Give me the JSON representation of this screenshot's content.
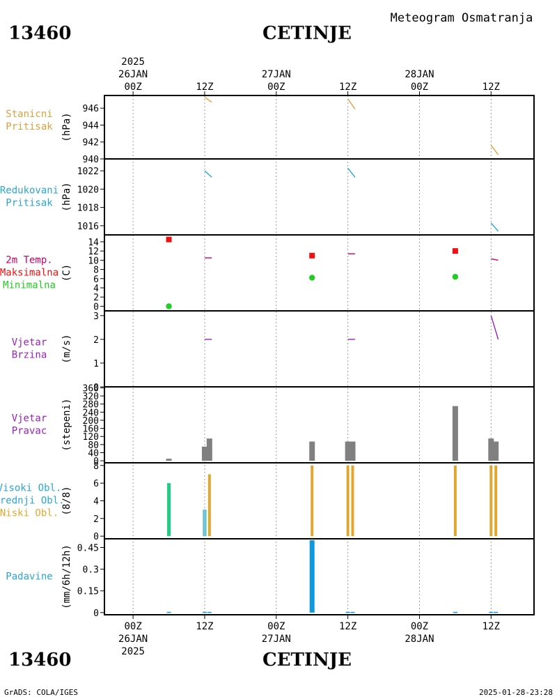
{
  "header": {
    "station_id": "13460",
    "station_name": "CETINJE",
    "subtitle": "Meteogram Osmatranja"
  },
  "footer": {
    "left": "GrADS: COLA/IGES",
    "right": "2025-01-28-23:28"
  },
  "time_axis": {
    "year": "2025",
    "range_hours": [
      -6,
      84
    ],
    "ticks": [
      {
        "h": 0,
        "label": "00Z",
        "date": "26JAN"
      },
      {
        "h": 15,
        "label": "12Z",
        "date": ""
      },
      {
        "h": 30,
        "label": "00Z",
        "date": "27JAN"
      },
      {
        "h": 45,
        "label": "12Z",
        "date": ""
      },
      {
        "h": 60,
        "label": "00Z",
        "date": "28JAN"
      },
      {
        "h": 75,
        "label": "12Z",
        "date": ""
      }
    ]
  },
  "colors": {
    "pressure": "#e0a040",
    "reduced_pressure": "#2aa6d0",
    "tmax": "#ee1111",
    "tmin": "#22cc22",
    "temp_label": "#cc0066",
    "wind": "#9922bb",
    "wind_dir_bar": "#808080",
    "cloud_high": "#22cc88",
    "cloud_mid": "#88bbee",
    "cloud_low": "#e0a830",
    "precip": "#1199dd"
  },
  "chart_data": [
    {
      "type": "line",
      "panel": "station_pressure",
      "labels": [
        "Stanicni",
        "Pritisak"
      ],
      "ylabel": "(hPa)",
      "ylim": [
        940,
        947.5
      ],
      "yticks": [
        940,
        942,
        944,
        946
      ],
      "segments": [
        {
          "x": [
            15,
            16.5
          ],
          "y": [
            947.3,
            946.7
          ]
        },
        {
          "x": [
            45,
            46.5
          ],
          "y": [
            947.1,
            945.9
          ]
        },
        {
          "x": [
            75,
            76.5
          ],
          "y": [
            941.6,
            940.5
          ]
        }
      ]
    },
    {
      "type": "line",
      "panel": "reduced_pressure",
      "labels": [
        "Redukovani",
        "Pritisak"
      ],
      "ylabel": "(hPa)",
      "ylim": [
        1015,
        1023.3
      ],
      "yticks": [
        1016,
        1018,
        1020,
        1022
      ],
      "segments": [
        {
          "x": [
            15,
            16.5
          ],
          "y": [
            1022.0,
            1021.3
          ]
        },
        {
          "x": [
            45,
            46.5
          ],
          "y": [
            1022.3,
            1021.3
          ]
        },
        {
          "x": [
            75,
            76.5
          ],
          "y": [
            1016.3,
            1015.4
          ]
        }
      ]
    },
    {
      "type": "scatter",
      "panel": "temperature",
      "labels": [
        "2m Temp.",
        "Maksimalna",
        "Minimalna"
      ],
      "ylabel": "(C)",
      "ylim": [
        -1,
        15.5
      ],
      "yticks": [
        0,
        2,
        4,
        6,
        8,
        10,
        12,
        14
      ],
      "tmax": [
        {
          "x": 7.5,
          "y": 14.5
        },
        {
          "x": 37.5,
          "y": 11
        },
        {
          "x": 67.5,
          "y": 12
        }
      ],
      "tmin": [
        {
          "x": 7.5,
          "y": 0
        },
        {
          "x": 37.5,
          "y": 6.2
        },
        {
          "x": 67.5,
          "y": 6.4
        }
      ],
      "temp_segments": [
        {
          "x": [
            15,
            16.5
          ],
          "y": [
            10.5,
            10.5
          ]
        },
        {
          "x": [
            45,
            46.5
          ],
          "y": [
            11.4,
            11.4
          ]
        },
        {
          "x": [
            75,
            76.5
          ],
          "y": [
            10.3,
            10.0
          ]
        }
      ]
    },
    {
      "type": "line",
      "panel": "wind_speed",
      "labels": [
        "Vjetar",
        "Brzina"
      ],
      "ylabel": "(m/s)",
      "ylim": [
        0,
        3.2
      ],
      "yticks": [
        0,
        1,
        2,
        3
      ],
      "segments": [
        {
          "x": [
            15,
            16.5
          ],
          "y": [
            2,
            2
          ]
        },
        {
          "x": [
            45,
            46.5
          ],
          "y": [
            2,
            2
          ]
        },
        {
          "x": [
            75,
            76.5
          ],
          "y": [
            3.0,
            2.0
          ]
        }
      ]
    },
    {
      "type": "bar",
      "panel": "wind_direction",
      "labels": [
        "Vjetar",
        "Pravac"
      ],
      "ylabel": "(stepeni)",
      "ylim": [
        -10,
        365
      ],
      "yticks": [
        0,
        40,
        80,
        120,
        160,
        200,
        240,
        280,
        320,
        360
      ],
      "bars": [
        {
          "x": 7.5,
          "y": 10
        },
        {
          "x": 15,
          "y": 70
        },
        {
          "x": 16,
          "y": 110
        },
        {
          "x": 37.5,
          "y": 95
        },
        {
          "x": 45,
          "y": 95
        },
        {
          "x": 46,
          "y": 95
        },
        {
          "x": 67.5,
          "y": 270
        },
        {
          "x": 75,
          "y": 110
        },
        {
          "x": 76,
          "y": 95
        }
      ]
    },
    {
      "type": "bar",
      "panel": "cloud_cover",
      "labels": [
        "Visoki Obl.",
        "Srednji Obl.",
        "Niski Obl."
      ],
      "ylabel": "(8/8)",
      "ylim": [
        -0.3,
        8.3
      ],
      "yticks": [
        0,
        2,
        4,
        6,
        8
      ],
      "high": [
        {
          "x": 7.5,
          "y": 6
        },
        {
          "x": 15,
          "y": 3
        }
      ],
      "mid": [
        {
          "x": 15,
          "y": 3
        }
      ],
      "low": [
        {
          "x": 16,
          "y": 7
        },
        {
          "x": 37.5,
          "y": 8
        },
        {
          "x": 45,
          "y": 8
        },
        {
          "x": 46,
          "y": 8
        },
        {
          "x": 67.5,
          "y": 8
        },
        {
          "x": 75,
          "y": 8
        },
        {
          "x": 76,
          "y": 8
        }
      ]
    },
    {
      "type": "bar",
      "panel": "precipitation",
      "labels": [
        "Padavine"
      ],
      "ylabel": "(mm/6h/12h)",
      "ylim": [
        -0.015,
        0.51
      ],
      "yticks": [
        0,
        0.15,
        0.3,
        0.45
      ],
      "ytick_labels": [
        "0",
        "0.15",
        "0.3",
        "0.45"
      ],
      "bars": [
        {
          "x": 7.5,
          "y": 0.005
        },
        {
          "x": 15,
          "y": 0.005
        },
        {
          "x": 16,
          "y": 0.005
        },
        {
          "x": 37.5,
          "y": 0.5
        },
        {
          "x": 45,
          "y": 0.005
        },
        {
          "x": 46,
          "y": 0.005
        },
        {
          "x": 67.5,
          "y": 0.005
        },
        {
          "x": 75,
          "y": 0.005
        },
        {
          "x": 76,
          "y": 0.005
        }
      ]
    }
  ]
}
